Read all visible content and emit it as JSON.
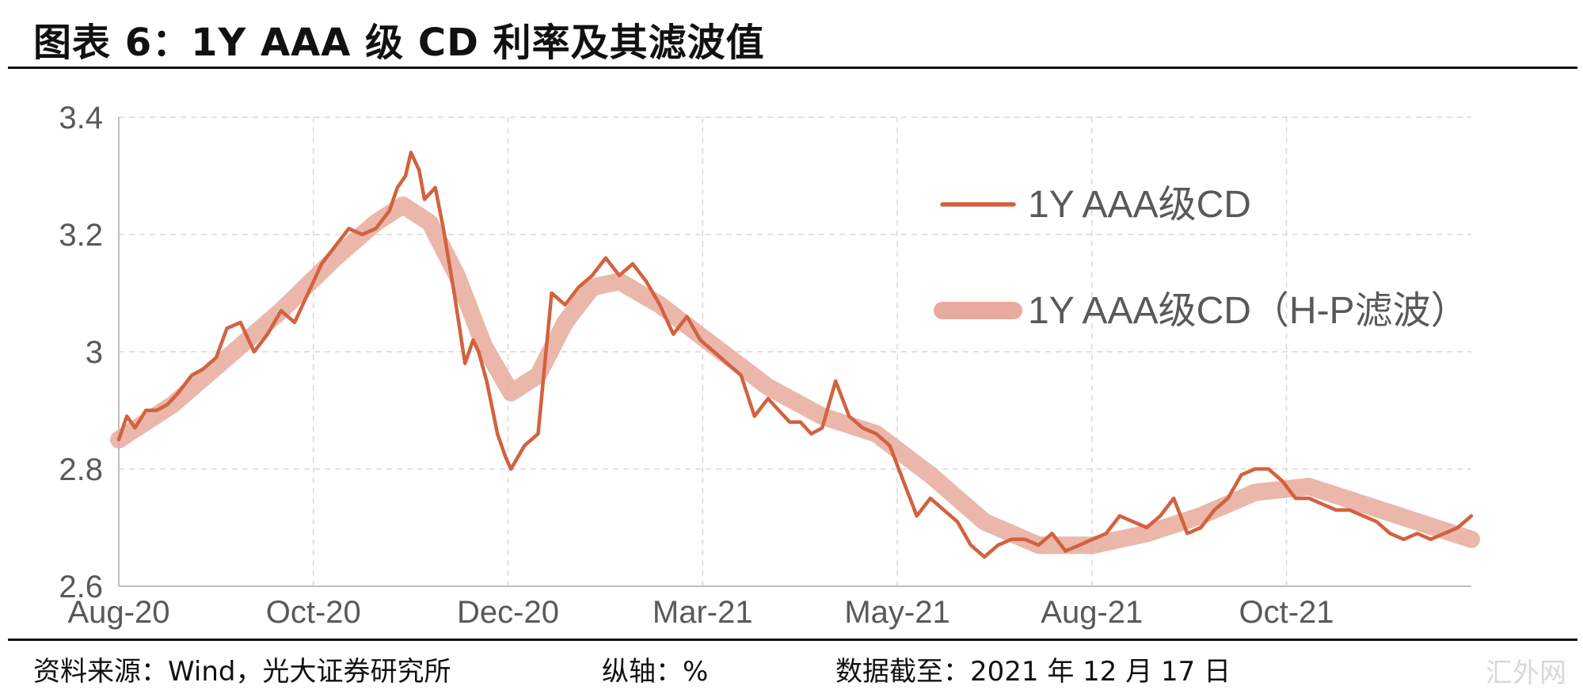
{
  "header": {
    "title": "图表 6：1Y AAA 级 CD 利率及其滤波值"
  },
  "footer": {
    "source": "资料来源：Wind，光大证券研究所",
    "axis_note": "纵轴：%",
    "date": "数据截至：2021 年 12 月 17 日"
  },
  "watermark": "汇外网",
  "colors": {
    "raw": "#d2623f",
    "filtered": "#e8aa9c",
    "grid": "#d9d9d9",
    "axis": "#bfbfbf",
    "text": "#595959"
  },
  "chart_data": {
    "type": "line",
    "title": "",
    "xlabel": "",
    "ylabel": "",
    "ylim": [
      2.6,
      3.4
    ],
    "yticks": [
      "3.4",
      "3.2",
      "3",
      "2.8",
      "2.6"
    ],
    "x_ticks": [
      "Aug-20",
      "Oct-20",
      "Dec-20",
      "Mar-21",
      "May-21",
      "Aug-21",
      "Oct-21"
    ],
    "grid": true,
    "legend_position": "top-right",
    "series": [
      {
        "name": "1Y AAA级CD",
        "color": "#d2623f",
        "x": [
          0,
          3,
          6,
          10,
          14,
          18,
          22,
          27,
          31,
          36,
          40,
          45,
          50,
          55,
          60,
          65,
          70,
          75,
          80,
          85,
          90,
          95,
          100,
          103,
          106,
          108,
          111,
          113,
          117,
          120,
          124,
          128,
          131,
          133,
          136,
          140,
          143,
          145,
          150,
          155,
          160,
          165,
          170,
          175,
          180,
          185,
          190,
          195,
          200,
          205,
          210,
          215,
          220,
          225,
          230,
          235,
          240,
          244,
          248,
          252,
          256,
          260,
          265,
          270,
          275,
          280,
          285,
          290,
          295,
          300,
          305,
          310,
          315,
          320,
          325,
          330,
          335,
          340,
          345,
          350,
          355,
          360,
          365,
          370,
          375,
          380,
          385,
          390,
          395,
          400,
          405,
          410,
          415,
          420,
          425,
          430,
          435,
          440,
          445,
          450,
          455,
          460,
          465,
          470,
          475,
          480,
          485,
          490,
          495,
          500
        ],
        "values": [
          2.85,
          2.89,
          2.87,
          2.9,
          2.9,
          2.91,
          2.93,
          2.96,
          2.97,
          2.99,
          3.04,
          3.05,
          3.0,
          3.03,
          3.07,
          3.05,
          3.1,
          3.15,
          3.18,
          3.21,
          3.2,
          3.21,
          3.24,
          3.28,
          3.3,
          3.34,
          3.31,
          3.26,
          3.28,
          3.21,
          3.1,
          2.98,
          3.02,
          3.0,
          2.95,
          2.86,
          2.82,
          2.8,
          2.84,
          2.86,
          3.1,
          3.08,
          3.11,
          3.13,
          3.16,
          3.13,
          3.15,
          3.12,
          3.08,
          3.03,
          3.06,
          3.02,
          3.0,
          2.98,
          2.96,
          2.89,
          2.92,
          2.9,
          2.88,
          2.88,
          2.86,
          2.87,
          2.95,
          2.89,
          2.87,
          2.86,
          2.84,
          2.78,
          2.72,
          2.75,
          2.73,
          2.71,
          2.67,
          2.65,
          2.67,
          2.68,
          2.68,
          2.67,
          2.69,
          2.66,
          2.67,
          2.68,
          2.69,
          2.72,
          2.71,
          2.7,
          2.72,
          2.75,
          2.69,
          2.7,
          2.73,
          2.75,
          2.79,
          2.8,
          2.8,
          2.78,
          2.75,
          2.75,
          2.74,
          2.73,
          2.73,
          2.72,
          2.71,
          2.69,
          2.68,
          2.69,
          2.68,
          2.69,
          2.7,
          2.72
        ]
      },
      {
        "name": "1Y AAA级CD（H-P滤波）",
        "color": "#e8aa9c",
        "x": [
          0,
          20,
          40,
          60,
          80,
          95,
          105,
          115,
          125,
          135,
          145,
          155,
          165,
          175,
          185,
          200,
          220,
          240,
          260,
          280,
          300,
          320,
          340,
          360,
          380,
          400,
          420,
          440,
          460,
          480,
          500
        ],
        "values": [
          2.85,
          2.91,
          2.99,
          3.07,
          3.16,
          3.22,
          3.25,
          3.22,
          3.13,
          3.01,
          2.93,
          2.96,
          3.05,
          3.11,
          3.12,
          3.08,
          3.01,
          2.94,
          2.89,
          2.86,
          2.79,
          2.71,
          2.67,
          2.67,
          2.69,
          2.72,
          2.76,
          2.77,
          2.74,
          2.71,
          2.68
        ]
      }
    ]
  }
}
